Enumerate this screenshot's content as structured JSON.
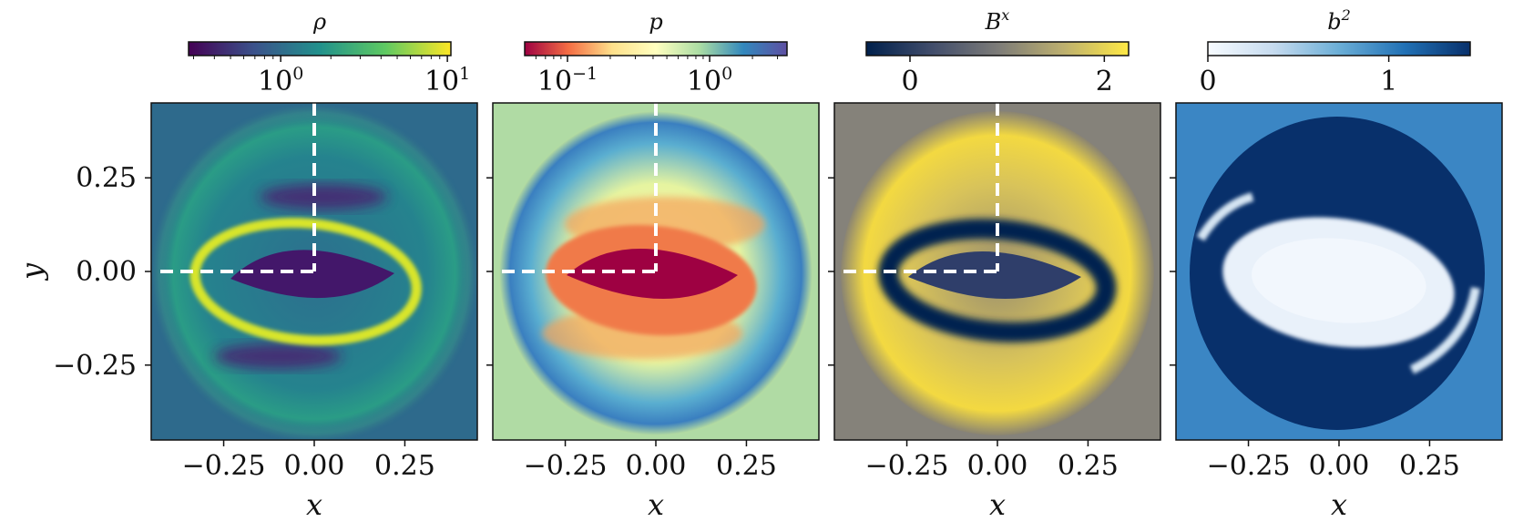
{
  "figure": {
    "description_title": ""
  },
  "colors": {
    "frame": "#111111",
    "guide": "#ffffff",
    "viridis": [
      "#440154",
      "#3b528b",
      "#21918c",
      "#5ec962",
      "#fde725"
    ],
    "spectral": [
      "#9e0142",
      "#f46d43",
      "#fee08b",
      "#ffffbf",
      "#abdda4",
      "#3288bd",
      "#5e4fa2"
    ],
    "cividis": [
      "#00204c",
      "#414d6b",
      "#7c7b78",
      "#bcaf6f",
      "#ffe945"
    ],
    "blues": [
      "#f7fbff",
      "#c6dbef",
      "#6baed6",
      "#2171b5",
      "#08306b"
    ]
  },
  "chart_data": [
    {
      "type": "heatmap",
      "field": "rho",
      "colorbar_label": "ρ",
      "colormap": "viridis",
      "scale": "log",
      "colorbar_range": [
        0.28,
        10.5
      ],
      "colorbar_ticks": [
        {
          "value": 1,
          "base": "10",
          "exp": "0"
        },
        {
          "value": 10,
          "base": "10",
          "exp": "1"
        }
      ],
      "xlabel": "x",
      "ylabel": "y",
      "xlim": [
        -0.45,
        0.45
      ],
      "ylim": [
        -0.45,
        0.45
      ],
      "xticks": [
        "−0.25",
        "0.00",
        "0.25"
      ],
      "yticks": [
        "0.25",
        "0.00",
        "−0.25"
      ],
      "show_yticklabels": true,
      "guide_lines": true
    },
    {
      "type": "heatmap",
      "field": "p",
      "colorbar_label": "p",
      "colormap": "spectral",
      "scale": "log",
      "colorbar_range": [
        0.05,
        3.5
      ],
      "colorbar_ticks": [
        {
          "value": 0.1,
          "base": "10",
          "exp": "−1"
        },
        {
          "value": 1,
          "base": "10",
          "exp": "0"
        }
      ],
      "xlabel": "x",
      "xlim": [
        -0.45,
        0.45
      ],
      "ylim": [
        -0.45,
        0.45
      ],
      "xticks": [
        "−0.25",
        "0.00",
        "0.25"
      ],
      "show_yticklabels": false,
      "guide_lines": true
    },
    {
      "type": "heatmap",
      "field": "Bx",
      "colorbar_label": "B",
      "colorbar_label_sup": "x",
      "colormap": "cividis",
      "scale": "linear",
      "colorbar_range": [
        -0.45,
        2.25
      ],
      "colorbar_ticks": [
        {
          "value": 0,
          "label": "0"
        },
        {
          "value": 2,
          "label": "2"
        }
      ],
      "xlabel": "x",
      "xlim": [
        -0.45,
        0.45
      ],
      "ylim": [
        -0.45,
        0.45
      ],
      "xticks": [
        "−0.25",
        "0.00",
        "0.25"
      ],
      "show_yticklabels": false,
      "guide_lines": true
    },
    {
      "type": "heatmap",
      "field": "b2",
      "colorbar_label": "b",
      "colorbar_label_sup": "2",
      "colormap": "blues",
      "scale": "linear",
      "colorbar_range": [
        0,
        1.45
      ],
      "colorbar_ticks": [
        {
          "value": 0,
          "label": "0"
        },
        {
          "value": 1,
          "label": "1"
        }
      ],
      "xlabel": "x",
      "xlim": [
        -0.45,
        0.45
      ],
      "ylim": [
        -0.45,
        0.45
      ],
      "xticks": [
        "−0.25",
        "0.00",
        "0.25"
      ],
      "show_yticklabels": false,
      "guide_lines": false
    }
  ]
}
